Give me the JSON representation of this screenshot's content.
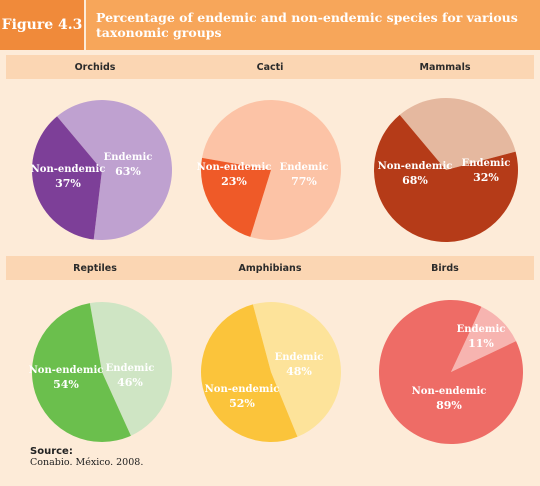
{
  "figure": {
    "label": "Figure 4.3",
    "title": "Percentage of endemic and non-endemic species for various taxonomic groups"
  },
  "source": {
    "title": "Source:",
    "text": "Conabio. México. 2008."
  },
  "colors": {
    "frame": "#fdebd8",
    "band": "#fbd6b3",
    "header_accent": "#f08a3a",
    "header_title": "#f7a65a"
  },
  "chart_data": [
    {
      "type": "pie",
      "title": "Orchids",
      "slices": [
        {
          "label": "Endemic",
          "display": "63%",
          "value": 63,
          "color": "#bfa1d0",
          "text_color": "#3a2a44"
        },
        {
          "label": "Non-endemic",
          "display": "37%",
          "value": 37,
          "color": "#7d3f98",
          "text_color": "#ffffff"
        }
      ]
    },
    {
      "type": "pie",
      "title": "Cacti",
      "slices": [
        {
          "label": "Endemic",
          "display": "77%",
          "value": 77,
          "color": "#fcc3a6",
          "text_color": "#4a2a1e"
        },
        {
          "label": "Non-endemic",
          "display": "23%",
          "value": 23,
          "color": "#ef5a28",
          "text_color": "#ffffff"
        }
      ]
    },
    {
      "type": "pie",
      "title": "Mammals",
      "slices": [
        {
          "label": "Endemic",
          "display": "32%",
          "value": 32,
          "color": "#e5b89f",
          "text_color": "#4a2a1e"
        },
        {
          "label": "Non-endemic",
          "display": "68%",
          "value": 68,
          "color": "#b53b18",
          "text_color": "#ffffff"
        }
      ]
    },
    {
      "type": "pie",
      "title": "Reptiles",
      "slices": [
        {
          "label": "Endemic",
          "display": "46%",
          "value": 46,
          "color": "#cfe5c4",
          "text_color": "#2b3a24"
        },
        {
          "label": "Non-endemic",
          "display": "54%",
          "value": 54,
          "color": "#6bbf4d",
          "text_color": "#ffffff"
        }
      ]
    },
    {
      "type": "pie",
      "title": "Amphibians",
      "slices": [
        {
          "label": "Endemic",
          "display": "48%",
          "value": 48,
          "color": "#fde39a",
          "text_color": "#3a3020"
        },
        {
          "label": "Non-endemic",
          "display": "52%",
          "value": 52,
          "color": "#fbc43b",
          "text_color": "#3a3020"
        }
      ]
    },
    {
      "type": "pie",
      "title": "Birds",
      "slices": [
        {
          "label": "Endemic",
          "display": "11%",
          "value": 11,
          "color": "#f7b4b0",
          "text_color": "#4a2020"
        },
        {
          "label": "Non-endemic",
          "display": "89%",
          "value": 89,
          "color": "#ee6c66",
          "text_color": "#ffffff"
        }
      ]
    }
  ]
}
